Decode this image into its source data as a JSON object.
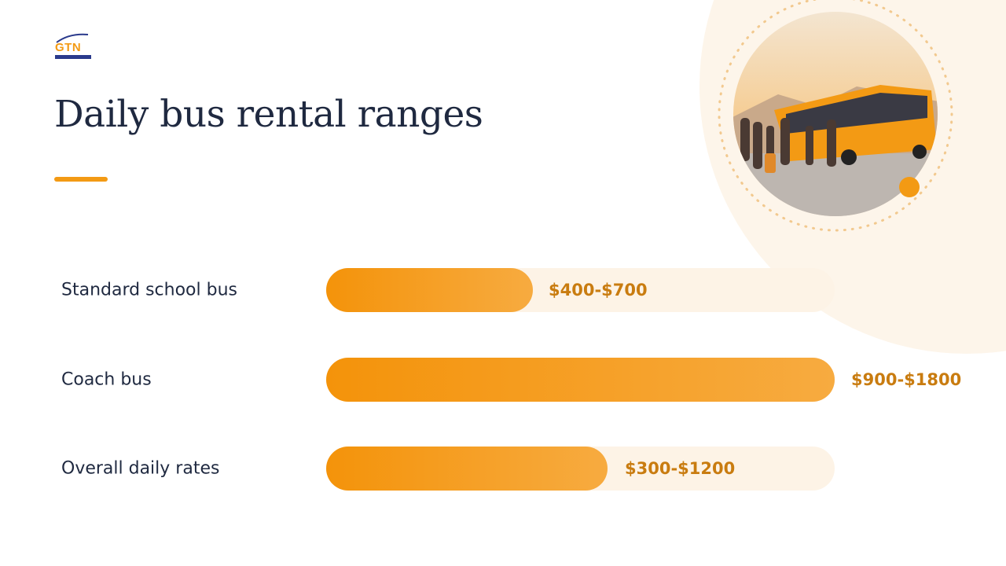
{
  "logo": {
    "text": "GTN"
  },
  "header": {
    "title": "Daily bus rental ranges"
  },
  "rows": [
    {
      "label": "Standard school bus",
      "range": "$400-$700"
    },
    {
      "label": "Coach bus",
      "range": "$900-$1800"
    },
    {
      "label": "Overall daily rates",
      "range": "$300-$1200"
    }
  ]
}
